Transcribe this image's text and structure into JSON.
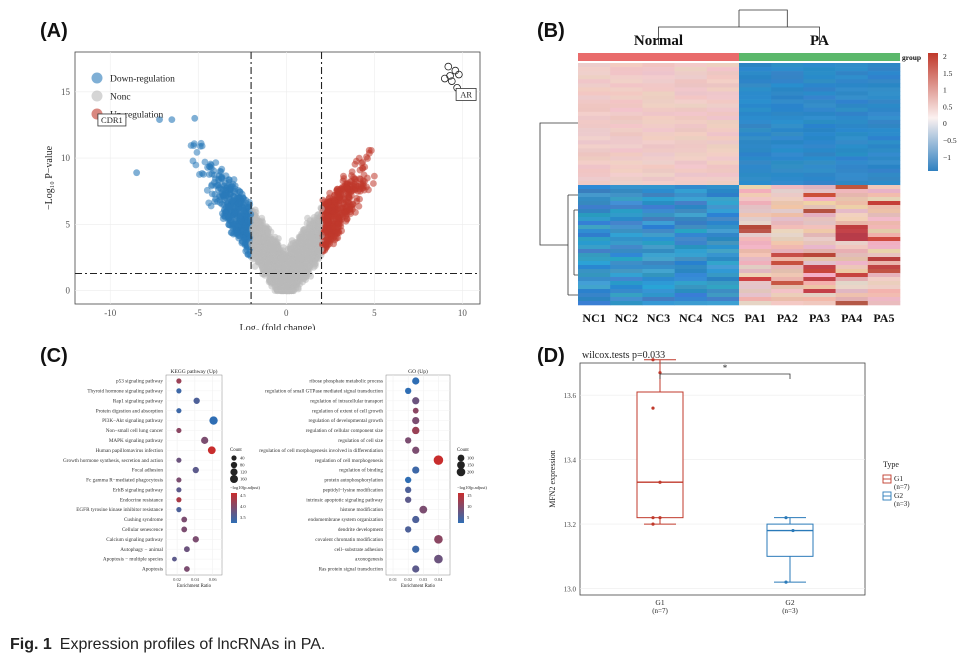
{
  "figure": {
    "caption_label": "Fig. 1",
    "caption_text": "Expression profiles of lncRNAs in PA.",
    "panels": [
      "(A)",
      "(B)",
      "(C)",
      "(D)"
    ]
  },
  "volcano": {
    "ylabel": "−Log₁₀ P−value",
    "xlabel": "Log₂ (fold change)",
    "xticks": [
      -10,
      -5,
      0,
      5,
      10
    ],
    "yticks": [
      0,
      5,
      10,
      15
    ],
    "xlim": [
      -12,
      11
    ],
    "ylim": [
      -1,
      18
    ],
    "thresholds": {
      "fc": [
        -2,
        2
      ],
      "p": 1.3
    },
    "legend": [
      "Down-regulation",
      "Nonc",
      "Up-regulation"
    ],
    "colors": {
      "down": "#2a7ab9",
      "none": "#b9b9b9",
      "up": "#c0392b"
    },
    "genes": [
      {
        "label": "CDR1",
        "x": -8.2,
        "y": 12.8
      },
      {
        "label": "AR",
        "x": 9.7,
        "y": 14.8
      }
    ],
    "outliers": [
      {
        "x": -8.5,
        "y": 8.9
      },
      {
        "x": -6.5,
        "y": 12.9
      },
      {
        "x": -7.2,
        "y": 12.9
      },
      {
        "x": -5.2,
        "y": 13.0
      }
    ]
  },
  "heatmap": {
    "groups": [
      "Normal",
      "PA"
    ],
    "group_legend": "group",
    "columns": [
      "NC1",
      "NC2",
      "NC3",
      "NC4",
      "NC5",
      "PA1",
      "PA2",
      "PA3",
      "PA4",
      "PA5"
    ],
    "scale_ticks": [
      "2",
      "1.5",
      "1",
      "0.5",
      "0",
      "−0.5",
      "−1"
    ],
    "colors": {
      "normal": "#e96b6b",
      "pa": "#5bb86b",
      "high": "#c0392b",
      "mid": "#f5e3e1",
      "low": "#2f80c0"
    }
  },
  "kegg": {
    "title": "KEGG pathway (Up)",
    "xlabel": "Enrichment Ratio",
    "xticks": [
      "0.02",
      "0.04",
      "0.06"
    ],
    "pathways": [
      "p53 signaling pathway",
      "Thyroid hormone signaling pathway",
      "Rap1 signaling pathway",
      "Protein digestion and absorption",
      "PI3K−Akt signaling pathway",
      "Non−small cell lung cancer",
      "MAPK signaling pathway",
      "Human papillomavirus infection",
      "Growth hormone synthesis, secretion and action",
      "Focal adhesion",
      "Fc gamma R−mediated phagocytosis",
      "ErbB signaling pathway",
      "Endocrine resistance",
      "EGFR tyrosine kinase inhibitor resistance",
      "Cushing syndrome",
      "Cellular senescence",
      "Calcium signaling pathway",
      "Autophagy − animal",
      "Apoptosis − multiple species",
      "Apoptosis"
    ],
    "ratios": [
      0.022,
      0.022,
      0.042,
      0.022,
      0.061,
      0.022,
      0.051,
      0.059,
      0.022,
      0.041,
      0.022,
      0.022,
      0.022,
      0.022,
      0.028,
      0.028,
      0.041,
      0.031,
      0.017,
      0.031
    ],
    "counts": [
      40,
      40,
      80,
      40,
      180,
      40,
      120,
      150,
      40,
      80,
      40,
      40,
      40,
      40,
      60,
      60,
      80,
      60,
      30,
      60
    ],
    "color_level": [
      0.7,
      0.1,
      0.2,
      0.1,
      0.0,
      0.6,
      0.5,
      1.0,
      0.4,
      0.3,
      0.5,
      0.3,
      0.8,
      0.2,
      0.5,
      0.5,
      0.5,
      0.4,
      0.3,
      0.5
    ],
    "size_legend_title": "Count",
    "size_legend": [
      "40",
      "80",
      "120",
      "160"
    ],
    "color_legend_title": "−log10(p.adjust)",
    "color_legend": [
      "4.5",
      "4.0",
      "3.5"
    ]
  },
  "go": {
    "title": "GO (Up)",
    "xlabel": "Enrichment Ratio",
    "xticks": [
      "0.01",
      "0.02",
      "0.03",
      "0.04"
    ],
    "terms": [
      "ribose phosphate metabolic process",
      "regulation of small GTPase mediated signal transduction",
      "regulation of intracellular transport",
      "regulation of extent of cell growth",
      "regulation of developmental growth",
      "regulation of cellular component size",
      "regulation of cell size",
      "regulation of cell morphogenesis involved in differentiation",
      "regulation of cell morphogenesis",
      "regulation of binding",
      "protein autophosphorylation",
      "peptidyl−lysine modification",
      "intrinsic apoptotic signaling pathway",
      "histone modification",
      "endomembrane system organization",
      "dendrite development",
      "covalent chromatin modification",
      "cell−substrate adhesion",
      "axonogenesis",
      "Ras protein signal transduction"
    ],
    "ratios": [
      0.025,
      0.02,
      0.025,
      0.025,
      0.025,
      0.025,
      0.02,
      0.025,
      0.04,
      0.025,
      0.02,
      0.02,
      0.02,
      0.03,
      0.025,
      0.02,
      0.04,
      0.025,
      0.04,
      0.025
    ],
    "counts": [
      120,
      80,
      120,
      60,
      120,
      130,
      80,
      120,
      260,
      120,
      80,
      80,
      80,
      150,
      120,
      80,
      200,
      120,
      200,
      120
    ],
    "color_level": [
      0.0,
      0.0,
      0.4,
      0.6,
      0.5,
      0.7,
      0.5,
      0.5,
      1.0,
      0.1,
      0.0,
      0.2,
      0.3,
      0.5,
      0.2,
      0.2,
      0.6,
      0.1,
      0.4,
      0.3
    ],
    "size_legend_title": "Count",
    "size_legend": [
      "100",
      "150",
      "200"
    ],
    "color_legend_title": "−log10(p.adjust)",
    "color_legend": [
      "15",
      "10",
      "5"
    ]
  },
  "boxplot": {
    "title": "wilcox.tests p=0.033",
    "ylabel": "MFN2 expression",
    "yticks": [
      "13.0",
      "13.2",
      "13.4",
      "13.6"
    ],
    "ylim": [
      12.98,
      13.7
    ],
    "signif": "*",
    "legend_title": "Type",
    "groups": [
      {
        "name": "G1",
        "n": "(n=7)",
        "color": "#c0392b",
        "min": 13.2,
        "q1": 13.22,
        "median": 13.33,
        "q3": 13.61,
        "max": 13.71,
        "points": [
          13.71,
          13.67,
          13.56,
          13.33,
          13.22,
          13.22,
          13.2
        ]
      },
      {
        "name": "G2",
        "n": "(n=3)",
        "color": "#2a7ab9",
        "min": 13.02,
        "q1": 13.1,
        "median": 13.18,
        "q3": 13.2,
        "max": 13.22,
        "points": [
          13.22,
          13.18,
          13.02
        ]
      }
    ]
  }
}
